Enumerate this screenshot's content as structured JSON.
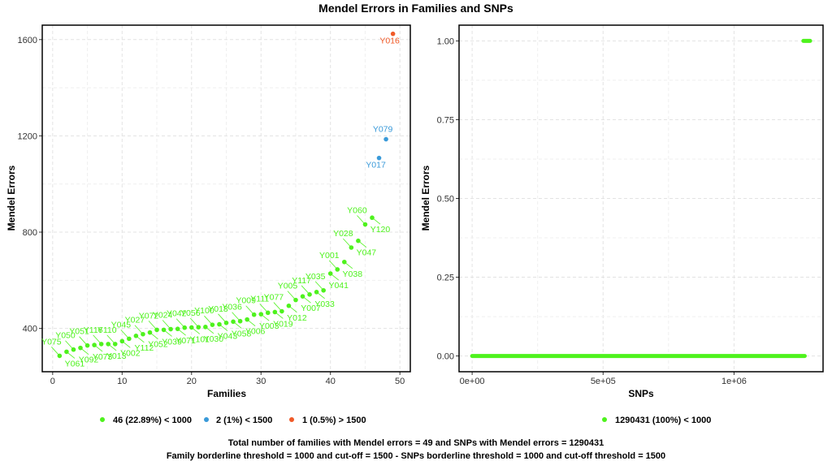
{
  "title": "Mendel Errors in Families and SNPs",
  "colors": {
    "green": "#4ef21d",
    "blue": "#3a9ad9",
    "red": "#f05a28"
  },
  "chart_data": [
    {
      "type": "scatter",
      "title": "",
      "xlabel": "Families",
      "ylabel": "Mendel Errors",
      "xlim": [
        -1.5,
        51.5
      ],
      "ylim": [
        220,
        1660
      ],
      "xticks": [
        0,
        10,
        20,
        30,
        40,
        50
      ],
      "yticks": [
        400,
        800,
        1200,
        1600
      ],
      "grid": true,
      "points": [
        {
          "x": 1,
          "y": 286,
          "label": "Y075",
          "group": 0
        },
        {
          "x": 2,
          "y": 303,
          "label": "Y061",
          "group": 0
        },
        {
          "x": 3,
          "y": 312,
          "label": "Y050",
          "group": 0
        },
        {
          "x": 4,
          "y": 319,
          "label": "Y092",
          "group": 0
        },
        {
          "x": 5,
          "y": 329,
          "label": "Y051",
          "group": 0
        },
        {
          "x": 6,
          "y": 331,
          "label": "Y073",
          "group": 0
        },
        {
          "x": 7,
          "y": 335,
          "label": "Y116",
          "group": 0
        },
        {
          "x": 8,
          "y": 335,
          "label": "Y013",
          "group": 0
        },
        {
          "x": 9,
          "y": 335,
          "label": "Y110",
          "group": 0
        },
        {
          "x": 10,
          "y": 347,
          "label": "Y002",
          "group": 0
        },
        {
          "x": 11,
          "y": 357,
          "label": "Y045",
          "group": 0
        },
        {
          "x": 12,
          "y": 369,
          "label": "Y112",
          "group": 0
        },
        {
          "x": 13,
          "y": 376,
          "label": "Y027",
          "group": 0
        },
        {
          "x": 14,
          "y": 383,
          "label": "Y052",
          "group": 0
        },
        {
          "x": 15,
          "y": 394,
          "label": "Y072",
          "group": 0
        },
        {
          "x": 16,
          "y": 394,
          "label": "Y039",
          "group": 0
        },
        {
          "x": 17,
          "y": 397,
          "label": "Y024",
          "group": 0
        },
        {
          "x": 18,
          "y": 398,
          "label": "Y071",
          "group": 0
        },
        {
          "x": 19,
          "y": 403,
          "label": "Y042",
          "group": 0
        },
        {
          "x": 20,
          "y": 404,
          "label": "Y101",
          "group": 0
        },
        {
          "x": 21,
          "y": 405,
          "label": "Y056",
          "group": 0
        },
        {
          "x": 22,
          "y": 406,
          "label": "Y030",
          "group": 0
        },
        {
          "x": 23,
          "y": 415,
          "label": "Y100",
          "group": 0
        },
        {
          "x": 24,
          "y": 417,
          "label": "Y043",
          "group": 0
        },
        {
          "x": 25,
          "y": 423,
          "label": "Y018",
          "group": 0
        },
        {
          "x": 26,
          "y": 428,
          "label": "Y058",
          "group": 0
        },
        {
          "x": 27,
          "y": 430,
          "label": "Y036",
          "group": 0
        },
        {
          "x": 28,
          "y": 437,
          "label": "Y006",
          "group": 0
        },
        {
          "x": 29,
          "y": 457,
          "label": "Y009",
          "group": 0
        },
        {
          "x": 30,
          "y": 459,
          "label": "Y003",
          "group": 0
        },
        {
          "x": 31,
          "y": 465,
          "label": "Y111",
          "group": 0
        },
        {
          "x": 32,
          "y": 468,
          "label": "Y019",
          "group": 0
        },
        {
          "x": 33,
          "y": 471,
          "label": "Y077",
          "group": 0
        },
        {
          "x": 34,
          "y": 494,
          "label": "Y012",
          "group": 0
        },
        {
          "x": 35,
          "y": 518,
          "label": "Y005",
          "group": 0
        },
        {
          "x": 36,
          "y": 533,
          "label": "Y007",
          "group": 0
        },
        {
          "x": 37,
          "y": 541,
          "label": "Y117",
          "group": 0
        },
        {
          "x": 38,
          "y": 551,
          "label": "Y033",
          "group": 0
        },
        {
          "x": 39,
          "y": 558,
          "label": "Y035",
          "group": 0
        },
        {
          "x": 40,
          "y": 628,
          "label": "Y041",
          "group": 0
        },
        {
          "x": 41,
          "y": 645,
          "label": "Y001",
          "group": 0
        },
        {
          "x": 42,
          "y": 676,
          "label": "Y038",
          "group": 0
        },
        {
          "x": 43,
          "y": 736,
          "label": "Y028",
          "group": 0
        },
        {
          "x": 44,
          "y": 764,
          "label": "Y047",
          "group": 0
        },
        {
          "x": 45,
          "y": 832,
          "label": "Y060",
          "group": 0
        },
        {
          "x": 46,
          "y": 860,
          "label": "Y120",
          "group": 0
        },
        {
          "x": 47,
          "y": 1108,
          "label": "Y017",
          "group": 1
        },
        {
          "x": 48,
          "y": 1186,
          "label": "Y079",
          "group": 1
        },
        {
          "x": 49,
          "y": 1624,
          "label": "Y016",
          "group": 2
        }
      ],
      "legend": [
        "46 (22.89%) < 1000",
        "2 (1%) < 1500",
        "1 (0.5%) > 1500"
      ],
      "legend_position": "bottom"
    },
    {
      "type": "line",
      "title": "",
      "xlabel": "SNPs",
      "ylabel": "Mendel Errors",
      "xlim": [
        -50000,
        1340000
      ],
      "ylim": [
        -0.05,
        1.05
      ],
      "xticks": [
        0,
        500000,
        1000000
      ],
      "xtick_labels": [
        "0e+00",
        "5e+05",
        "1e+06"
      ],
      "yticks": [
        0,
        0.25,
        0.5,
        0.75,
        1.0
      ],
      "ytick_labels": [
        "0.00",
        "0.25",
        "0.50",
        "0.75",
        "1.00"
      ],
      "grid": true,
      "segments": [
        {
          "x_start": 0,
          "x_end": 1270000,
          "y": 0
        },
        {
          "x_start": 1265000,
          "x_end": 1290431,
          "y": 1
        }
      ],
      "legend": [
        "1290431 (100%) < 1000"
      ],
      "legend_position": "bottom"
    }
  ],
  "captions": [
    "Total number of families with Mendel errors = 49 and SNPs with Mendel errors = 1290431",
    "Family borderline threshold = 1000 and cut-off = 1500 - SNPs borderline threshold = 1000 and cut-off threshold = 1500"
  ]
}
